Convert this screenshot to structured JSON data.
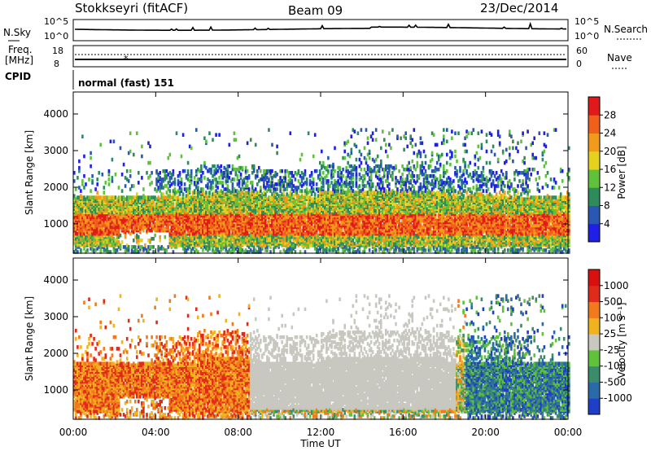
{
  "header": {
    "station": "Stokkseyri (fitACF)",
    "beam": "Beam 09",
    "date": "23/Dec/2014"
  },
  "noise_panel": {
    "left_label": "N.Sky",
    "right_label": "N.Search",
    "ticks_left": [
      "10^5",
      "10^0"
    ],
    "ticks_right": [
      "10^5",
      "10^0"
    ]
  },
  "freq_panel": {
    "left_label_1": "Freq.",
    "left_label_2": "[MHz]",
    "right_label": "Nave",
    "ticks_left": [
      "18",
      "8"
    ],
    "ticks_right": [
      "60",
      "0"
    ]
  },
  "cpid_panel": {
    "label": "CPID",
    "mode": "normal (fast) 151"
  },
  "x_axis": {
    "label": "Time UT",
    "ticks": [
      "00:00",
      "04:00",
      "08:00",
      "12:00",
      "16:00",
      "20:00",
      "00:00"
    ],
    "range_hours": [
      0,
      24
    ]
  },
  "chart_data": [
    {
      "type": "heatmap",
      "parameter": "power",
      "ylabel": "Slant Range [km]",
      "yticks": [
        "1000",
        "2000",
        "3000",
        "4000"
      ],
      "ylim": [
        200,
        4600
      ],
      "colorbar": {
        "label": "Power [dB]",
        "ticks": [
          "4",
          "8",
          "12",
          "16",
          "20",
          "24",
          "28"
        ],
        "colors": [
          "#1f1fe8",
          "#2a56b4",
          "#2e8c5c",
          "#5fc23a",
          "#e6d21e",
          "#f29a1c",
          "#f0601c",
          "#e01a1a"
        ]
      }
    },
    {
      "type": "heatmap",
      "parameter": "velocity",
      "ylabel": "Slant Range [km]",
      "yticks": [
        "1000",
        "2000",
        "3000",
        "4000"
      ],
      "ylim": [
        200,
        4600
      ],
      "colorbar": {
        "label": "Velocity [m s⁻¹]",
        "ticks": [
          "1000",
          "500",
          "100",
          "25",
          "-25",
          "-100",
          "-500",
          "-1000"
        ],
        "colors": [
          "#1f3fc8",
          "#2a6aa8",
          "#3a8c6a",
          "#5fc23a",
          "#c8c8c0",
          "#f0b21e",
          "#f27a1c",
          "#e02a1a",
          "#d81010"
        ]
      }
    }
  ]
}
